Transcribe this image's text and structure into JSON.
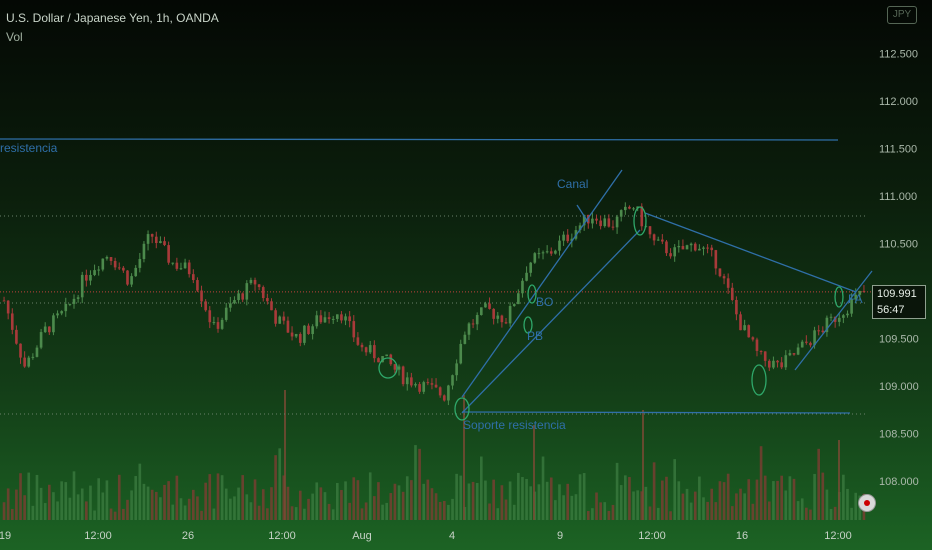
{
  "header": {
    "symbol_line": "U.S. Dollar / Japanese Yen, 1h, OANDA",
    "volume_label": "Vol"
  },
  "currency_badge": "JPY",
  "price_box": {
    "price": "109.991",
    "countdown": "56:47"
  },
  "annotations": {
    "resistance_top": "resistencia",
    "channel": "Canal",
    "breakout": "BO",
    "pullback": "PB",
    "support_resistance": "Soporte resistencia",
    "partial_label": "FA"
  },
  "colors": {
    "bull": "#4c8a4c",
    "bear": "#a83a3a",
    "trendline": "#2f6fa8",
    "price_line": "#c0413b"
  },
  "chart_data": {
    "type": "candlestick",
    "title": "U.S. Dollar / Japanese Yen, 1h, OANDA",
    "ylim": [
      107.7,
      113.0
    ],
    "y_ticks": [
      "112.500",
      "112.000",
      "111.500",
      "111.000",
      "110.500",
      "110.000",
      "109.500",
      "109.000",
      "108.500",
      "108.000"
    ],
    "y_tick_values": [
      112.5,
      112.0,
      111.5,
      111.0,
      110.5,
      110.0,
      109.5,
      109.0,
      108.5,
      108.0
    ],
    "x_ticks": [
      "19",
      "12:00",
      "26",
      "12:00",
      "Aug",
      "4",
      "9",
      "12:00",
      "16",
      "12:00"
    ],
    "last_price": 109.991,
    "resistance_level": 111.6,
    "support_level": 108.75,
    "close_path": [
      109.9,
      109.2,
      109.6,
      109.8,
      110.2,
      110.4,
      110.1,
      110.6,
      110.3,
      110.2,
      109.6,
      109.9,
      110.1,
      109.7,
      109.5,
      109.7,
      109.8,
      109.4,
      109.3,
      109.1,
      109.0,
      108.9,
      109.6,
      109.8,
      109.7,
      110.3,
      110.4,
      110.6,
      110.8,
      110.7,
      110.9,
      110.5,
      110.4,
      110.5,
      110.3,
      109.7,
      109.3,
      109.2,
      109.4,
      109.6,
      109.8,
      109.991
    ],
    "grid": false,
    "legend": "none"
  }
}
